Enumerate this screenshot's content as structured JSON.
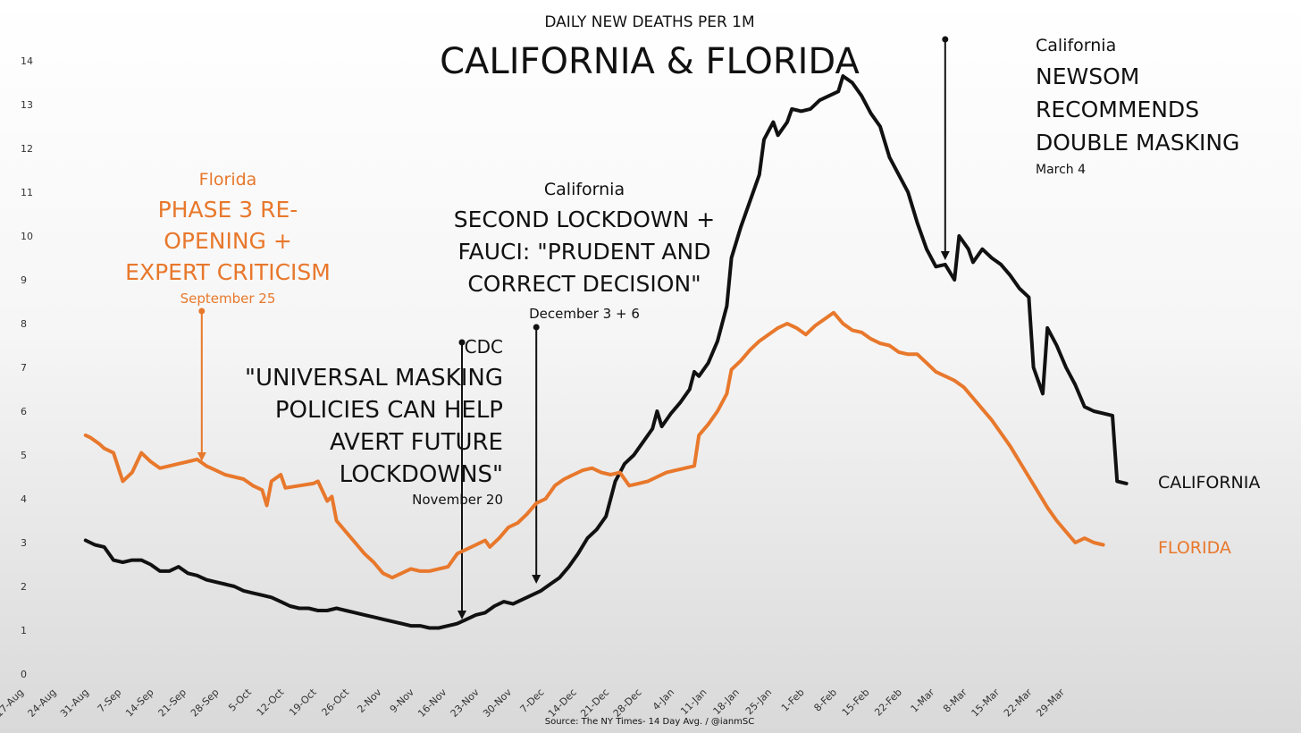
{
  "chart_data": {
    "type": "line",
    "subtitle": "DAILY NEW DEATHS PER 1M",
    "title": "CALIFORNIA & FLORIDA",
    "source": "Source: The NY Times- 14 Day Avg. / @ianmSC",
    "ylim": [
      0,
      14
    ],
    "y_ticks": [
      0,
      1,
      2,
      3,
      4,
      5,
      6,
      7,
      8,
      9,
      10,
      11,
      12,
      13,
      14
    ],
    "x_ticks": [
      "17-Aug",
      "24-Aug",
      "31-Aug",
      "7-Sep",
      "14-Sep",
      "21-Sep",
      "28-Sep",
      "5-Oct",
      "12-Oct",
      "19-Oct",
      "26-Oct",
      "2-Nov",
      "9-Nov",
      "16-Nov",
      "23-Nov",
      "30-Nov",
      "7-Dec",
      "14-Dec",
      "21-Dec",
      "28-Dec",
      "4-Jan",
      "11-Jan",
      "18-Jan",
      "25-Jan",
      "1-Feb",
      "8-Feb",
      "15-Feb",
      "22-Feb",
      "1-Mar",
      "8-Mar",
      "15-Mar",
      "22-Mar",
      "29-Mar"
    ],
    "series": [
      {
        "name": "CALIFORNIA",
        "color": "#111111",
        "points": [
          [
            14,
            3.05
          ],
          [
            15,
            3.0
          ],
          [
            16,
            2.95
          ],
          [
            18,
            2.9
          ],
          [
            20,
            2.6
          ],
          [
            22,
            2.55
          ],
          [
            24,
            2.6
          ],
          [
            26,
            2.6
          ],
          [
            28,
            2.5
          ],
          [
            30,
            2.35
          ],
          [
            32,
            2.35
          ],
          [
            34,
            2.45
          ],
          [
            36,
            2.3
          ],
          [
            38,
            2.25
          ],
          [
            40,
            2.15
          ],
          [
            42,
            2.1
          ],
          [
            44,
            2.05
          ],
          [
            46,
            2.0
          ],
          [
            48,
            1.9
          ],
          [
            50,
            1.85
          ],
          [
            52,
            1.8
          ],
          [
            54,
            1.75
          ],
          [
            56,
            1.65
          ],
          [
            58,
            1.55
          ],
          [
            60,
            1.5
          ],
          [
            62,
            1.5
          ],
          [
            64,
            1.45
          ],
          [
            66,
            1.45
          ],
          [
            68,
            1.5
          ],
          [
            70,
            1.45
          ],
          [
            72,
            1.4
          ],
          [
            74,
            1.35
          ],
          [
            76,
            1.3
          ],
          [
            78,
            1.25
          ],
          [
            80,
            1.2
          ],
          [
            82,
            1.15
          ],
          [
            84,
            1.1
          ],
          [
            86,
            1.1
          ],
          [
            88,
            1.05
          ],
          [
            90,
            1.05
          ],
          [
            92,
            1.1
          ],
          [
            94,
            1.15
          ],
          [
            96,
            1.25
          ],
          [
            98,
            1.35
          ],
          [
            100,
            1.4
          ],
          [
            102,
            1.55
          ],
          [
            104,
            1.65
          ],
          [
            106,
            1.6
          ],
          [
            108,
            1.7
          ],
          [
            110,
            1.8
          ],
          [
            112,
            1.9
          ],
          [
            114,
            2.05
          ],
          [
            116,
            2.2
          ],
          [
            118,
            2.45
          ],
          [
            120,
            2.75
          ],
          [
            122,
            3.1
          ],
          [
            124,
            3.3
          ],
          [
            126,
            3.6
          ],
          [
            128,
            4.4
          ],
          [
            130,
            4.8
          ],
          [
            132,
            5.0
          ],
          [
            134,
            5.3
          ],
          [
            136,
            5.6
          ],
          [
            137,
            6.0
          ],
          [
            138,
            5.65
          ],
          [
            140,
            5.95
          ],
          [
            142,
            6.2
          ],
          [
            144,
            6.5
          ],
          [
            145,
            6.9
          ],
          [
            146,
            6.8
          ],
          [
            148,
            7.1
          ],
          [
            150,
            7.6
          ],
          [
            152,
            8.4
          ],
          [
            153,
            9.5
          ],
          [
            155,
            10.2
          ],
          [
            157,
            10.8
          ],
          [
            159,
            11.4
          ],
          [
            160,
            12.2
          ],
          [
            162,
            12.6
          ],
          [
            163,
            12.3
          ],
          [
            165,
            12.6
          ],
          [
            166,
            12.9
          ],
          [
            168,
            12.85
          ],
          [
            170,
            12.9
          ],
          [
            172,
            13.1
          ],
          [
            174,
            13.2
          ],
          [
            176,
            13.3
          ],
          [
            177,
            13.65
          ],
          [
            179,
            13.5
          ],
          [
            181,
            13.2
          ],
          [
            183,
            12.8
          ],
          [
            185,
            12.5
          ],
          [
            187,
            11.8
          ],
          [
            189,
            11.4
          ],
          [
            191,
            11.0
          ],
          [
            193,
            10.3
          ],
          [
            195,
            9.7
          ],
          [
            197,
            9.3
          ],
          [
            199,
            9.35
          ],
          [
            201,
            9.0
          ],
          [
            202,
            10.0
          ],
          [
            204,
            9.7
          ],
          [
            205,
            9.4
          ],
          [
            207,
            9.7
          ],
          [
            209,
            9.5
          ],
          [
            211,
            9.35
          ],
          [
            213,
            9.1
          ],
          [
            215,
            8.8
          ],
          [
            217,
            8.6
          ],
          [
            218,
            7.0
          ],
          [
            220,
            6.4
          ],
          [
            221,
            7.9
          ],
          [
            223,
            7.5
          ],
          [
            225,
            7.0
          ],
          [
            227,
            6.6
          ],
          [
            229,
            6.1
          ],
          [
            231,
            6.0
          ],
          [
            233,
            5.95
          ],
          [
            235,
            5.9
          ],
          [
            236,
            4.4
          ],
          [
            238,
            4.35
          ]
        ]
      },
      {
        "name": "FLORIDA",
        "color": "#e8782c",
        "points": [
          [
            14,
            5.45
          ],
          [
            15,
            5.4
          ],
          [
            17,
            5.25
          ],
          [
            18,
            5.15
          ],
          [
            20,
            5.05
          ],
          [
            22,
            4.4
          ],
          [
            24,
            4.6
          ],
          [
            26,
            5.05
          ],
          [
            28,
            4.85
          ],
          [
            30,
            4.7
          ],
          [
            32,
            4.75
          ],
          [
            34,
            4.8
          ],
          [
            36,
            4.85
          ],
          [
            38,
            4.9
          ],
          [
            40,
            4.75
          ],
          [
            42,
            4.65
          ],
          [
            44,
            4.55
          ],
          [
            46,
            4.5
          ],
          [
            48,
            4.45
          ],
          [
            50,
            4.3
          ],
          [
            52,
            4.2
          ],
          [
            53,
            3.85
          ],
          [
            54,
            4.4
          ],
          [
            56,
            4.55
          ],
          [
            57,
            4.25
          ],
          [
            60,
            4.3
          ],
          [
            63,
            4.35
          ],
          [
            64,
            4.4
          ],
          [
            66,
            3.95
          ],
          [
            67,
            4.05
          ],
          [
            68,
            3.5
          ],
          [
            70,
            3.25
          ],
          [
            72,
            3.0
          ],
          [
            74,
            2.75
          ],
          [
            76,
            2.55
          ],
          [
            78,
            2.3
          ],
          [
            80,
            2.2
          ],
          [
            82,
            2.3
          ],
          [
            84,
            2.4
          ],
          [
            86,
            2.35
          ],
          [
            88,
            2.35
          ],
          [
            90,
            2.4
          ],
          [
            92,
            2.45
          ],
          [
            94,
            2.75
          ],
          [
            96,
            2.85
          ],
          [
            98,
            2.95
          ],
          [
            100,
            3.05
          ],
          [
            101,
            2.9
          ],
          [
            103,
            3.1
          ],
          [
            105,
            3.35
          ],
          [
            107,
            3.45
          ],
          [
            109,
            3.65
          ],
          [
            111,
            3.9
          ],
          [
            113,
            4.0
          ],
          [
            115,
            4.3
          ],
          [
            117,
            4.45
          ],
          [
            119,
            4.55
          ],
          [
            121,
            4.65
          ],
          [
            123,
            4.7
          ],
          [
            125,
            4.6
          ],
          [
            127,
            4.55
          ],
          [
            129,
            4.6
          ],
          [
            131,
            4.3
          ],
          [
            133,
            4.35
          ],
          [
            135,
            4.4
          ],
          [
            137,
            4.5
          ],
          [
            139,
            4.6
          ],
          [
            141,
            4.65
          ],
          [
            143,
            4.7
          ],
          [
            145,
            4.75
          ],
          [
            146,
            5.45
          ],
          [
            148,
            5.7
          ],
          [
            150,
            6.0
          ],
          [
            152,
            6.4
          ],
          [
            153,
            6.95
          ],
          [
            155,
            7.15
          ],
          [
            157,
            7.4
          ],
          [
            159,
            7.6
          ],
          [
            161,
            7.75
          ],
          [
            163,
            7.9
          ],
          [
            165,
            8.0
          ],
          [
            167,
            7.9
          ],
          [
            169,
            7.75
          ],
          [
            171,
            7.95
          ],
          [
            173,
            8.1
          ],
          [
            175,
            8.25
          ],
          [
            177,
            8.0
          ],
          [
            179,
            7.85
          ],
          [
            181,
            7.8
          ],
          [
            183,
            7.65
          ],
          [
            185,
            7.55
          ],
          [
            187,
            7.5
          ],
          [
            189,
            7.35
          ],
          [
            191,
            7.3
          ],
          [
            193,
            7.3
          ],
          [
            195,
            7.1
          ],
          [
            197,
            6.9
          ],
          [
            199,
            6.8
          ],
          [
            201,
            6.7
          ],
          [
            203,
            6.55
          ],
          [
            205,
            6.3
          ],
          [
            207,
            6.05
          ],
          [
            209,
            5.8
          ],
          [
            211,
            5.5
          ],
          [
            213,
            5.2
          ],
          [
            215,
            4.85
          ],
          [
            217,
            4.5
          ],
          [
            219,
            4.15
          ],
          [
            221,
            3.8
          ],
          [
            223,
            3.5
          ],
          [
            225,
            3.25
          ],
          [
            227,
            3.0
          ],
          [
            229,
            3.1
          ],
          [
            231,
            3.0
          ],
          [
            233,
            2.95
          ]
        ]
      }
    ],
    "series_labels": {
      "california": "CALIFORNIA",
      "florida": "FLORIDA"
    },
    "annotations": {
      "florida_phase3": {
        "region": "Florida",
        "lines": [
          "PHASE 3 RE-",
          "OPENING +",
          "EXPERT CRITICISM"
        ],
        "date": "September 25",
        "day": 39
      },
      "cdc": {
        "region": "CDC",
        "lines": [
          "\"UNIVERSAL MASKING",
          "POLICIES CAN HELP",
          "AVERT FUTURE",
          "LOCKDOWNS\""
        ],
        "date": "November 20",
        "day": 95
      },
      "ca_lockdown": {
        "region": "California",
        "lines": [
          "SECOND LOCKDOWN +",
          "FAUCI: \"PRUDENT AND",
          "CORRECT DECISION\""
        ],
        "date": "December 3 + 6",
        "day": 111
      },
      "newsom": {
        "region": "California",
        "lines": [
          "NEWSOM",
          "RECOMMENDS",
          "DOUBLE MASKING"
        ],
        "date": "March 4",
        "day": 199
      }
    }
  }
}
